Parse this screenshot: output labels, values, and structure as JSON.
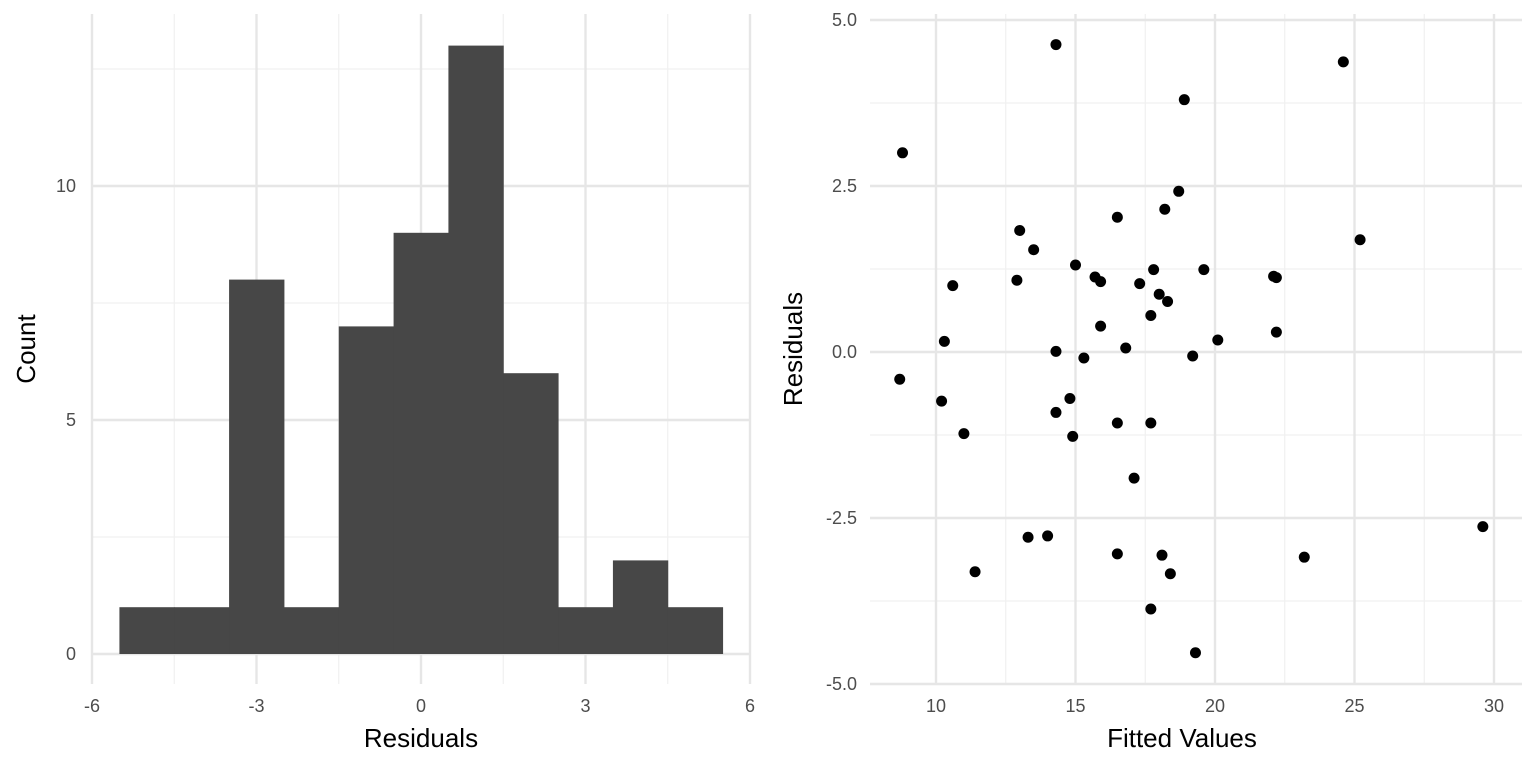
{
  "chart_data": [
    {
      "type": "bar",
      "subtype": "histogram",
      "xlabel": "Residuals",
      "ylabel": "Count",
      "xlim": [
        -6,
        6
      ],
      "ylim": [
        0,
        13
      ],
      "grid": true,
      "colors": {
        "bar": "#474747",
        "grid_major": "#e6e6e6",
        "grid_minor": "#f0f0f0"
      },
      "x_ticks": [
        -6,
        -3,
        0,
        3,
        6
      ],
      "x_tick_labels": [
        "-6",
        "-3",
        "0",
        "3",
        "6"
      ],
      "y_ticks": [
        0,
        5,
        10
      ],
      "y_tick_labels": [
        "0",
        "5",
        "10"
      ],
      "bins": [
        {
          "x0": -5.5,
          "x1": -4.5,
          "count": 1
        },
        {
          "x0": -4.5,
          "x1": -3.5,
          "count": 1
        },
        {
          "x0": -3.5,
          "x1": -2.5,
          "count": 8
        },
        {
          "x0": -2.5,
          "x1": -1.5,
          "count": 1
        },
        {
          "x0": -1.5,
          "x1": -0.5,
          "count": 7
        },
        {
          "x0": -0.5,
          "x1": 0.5,
          "count": 9
        },
        {
          "x0": 0.5,
          "x1": 1.5,
          "count": 13
        },
        {
          "x0": 1.5,
          "x1": 2.5,
          "count": 6
        },
        {
          "x0": 2.5,
          "x1": 3.5,
          "count": 1
        },
        {
          "x0": 3.5,
          "x1": 4.5,
          "count": 2
        },
        {
          "x0": 4.5,
          "x1": 5.5,
          "count": 1
        }
      ]
    },
    {
      "type": "scatter",
      "xlabel": "Fitted Values",
      "ylabel": "Residuals",
      "xlim": [
        8,
        31
      ],
      "ylim": [
        -5,
        5
      ],
      "grid": true,
      "colors": {
        "point": "#000000",
        "grid_major": "#e6e6e6",
        "grid_minor": "#f0f0f0"
      },
      "x_ticks": [
        10,
        15,
        20,
        25,
        30
      ],
      "x_tick_labels": [
        "10",
        "15",
        "20",
        "25",
        "30"
      ],
      "y_ticks": [
        -5,
        -2.5,
        0,
        2.5,
        5
      ],
      "y_tick_labels": [
        "-5.0",
        "-2.5",
        "0.0",
        "2.5",
        "5.0"
      ],
      "points": [
        {
          "x": 14.3,
          "y": 4.63
        },
        {
          "x": 24.6,
          "y": 4.37
        },
        {
          "x": 18.9,
          "y": 3.8
        },
        {
          "x": 8.8,
          "y": 3.0
        },
        {
          "x": 18.7,
          "y": 2.42
        },
        {
          "x": 18.2,
          "y": 2.15
        },
        {
          "x": 16.5,
          "y": 2.03
        },
        {
          "x": 13.0,
          "y": 1.83
        },
        {
          "x": 13.5,
          "y": 1.54
        },
        {
          "x": 25.2,
          "y": 1.69
        },
        {
          "x": 15.0,
          "y": 1.31
        },
        {
          "x": 17.8,
          "y": 1.24
        },
        {
          "x": 19.6,
          "y": 1.24
        },
        {
          "x": 22.1,
          "y": 1.14
        },
        {
          "x": 22.2,
          "y": 1.12
        },
        {
          "x": 15.7,
          "y": 1.13
        },
        {
          "x": 15.9,
          "y": 1.06
        },
        {
          "x": 12.9,
          "y": 1.08
        },
        {
          "x": 10.6,
          "y": 1.0
        },
        {
          "x": 17.3,
          "y": 1.03
        },
        {
          "x": 18.0,
          "y": 0.87
        },
        {
          "x": 18.3,
          "y": 0.76
        },
        {
          "x": 17.7,
          "y": 0.55
        },
        {
          "x": 15.9,
          "y": 0.39
        },
        {
          "x": 22.2,
          "y": 0.3
        },
        {
          "x": 10.3,
          "y": 0.16
        },
        {
          "x": 20.1,
          "y": 0.18
        },
        {
          "x": 16.8,
          "y": 0.06
        },
        {
          "x": 14.3,
          "y": 0.01
        },
        {
          "x": 15.3,
          "y": -0.09
        },
        {
          "x": 19.2,
          "y": -0.06
        },
        {
          "x": 8.7,
          "y": -0.41
        },
        {
          "x": 10.2,
          "y": -0.74
        },
        {
          "x": 14.8,
          "y": -0.7
        },
        {
          "x": 14.3,
          "y": -0.91
        },
        {
          "x": 16.5,
          "y": -1.07
        },
        {
          "x": 17.7,
          "y": -1.07
        },
        {
          "x": 11.0,
          "y": -1.23
        },
        {
          "x": 14.9,
          "y": -1.27
        },
        {
          "x": 17.1,
          "y": -1.9
        },
        {
          "x": 13.3,
          "y": -2.79
        },
        {
          "x": 14.0,
          "y": -2.77
        },
        {
          "x": 29.6,
          "y": -2.63
        },
        {
          "x": 16.5,
          "y": -3.04
        },
        {
          "x": 18.1,
          "y": -3.06
        },
        {
          "x": 23.2,
          "y": -3.09
        },
        {
          "x": 11.4,
          "y": -3.31
        },
        {
          "x": 18.4,
          "y": -3.34
        },
        {
          "x": 17.7,
          "y": -3.87
        },
        {
          "x": 19.3,
          "y": -4.53
        }
      ]
    }
  ]
}
